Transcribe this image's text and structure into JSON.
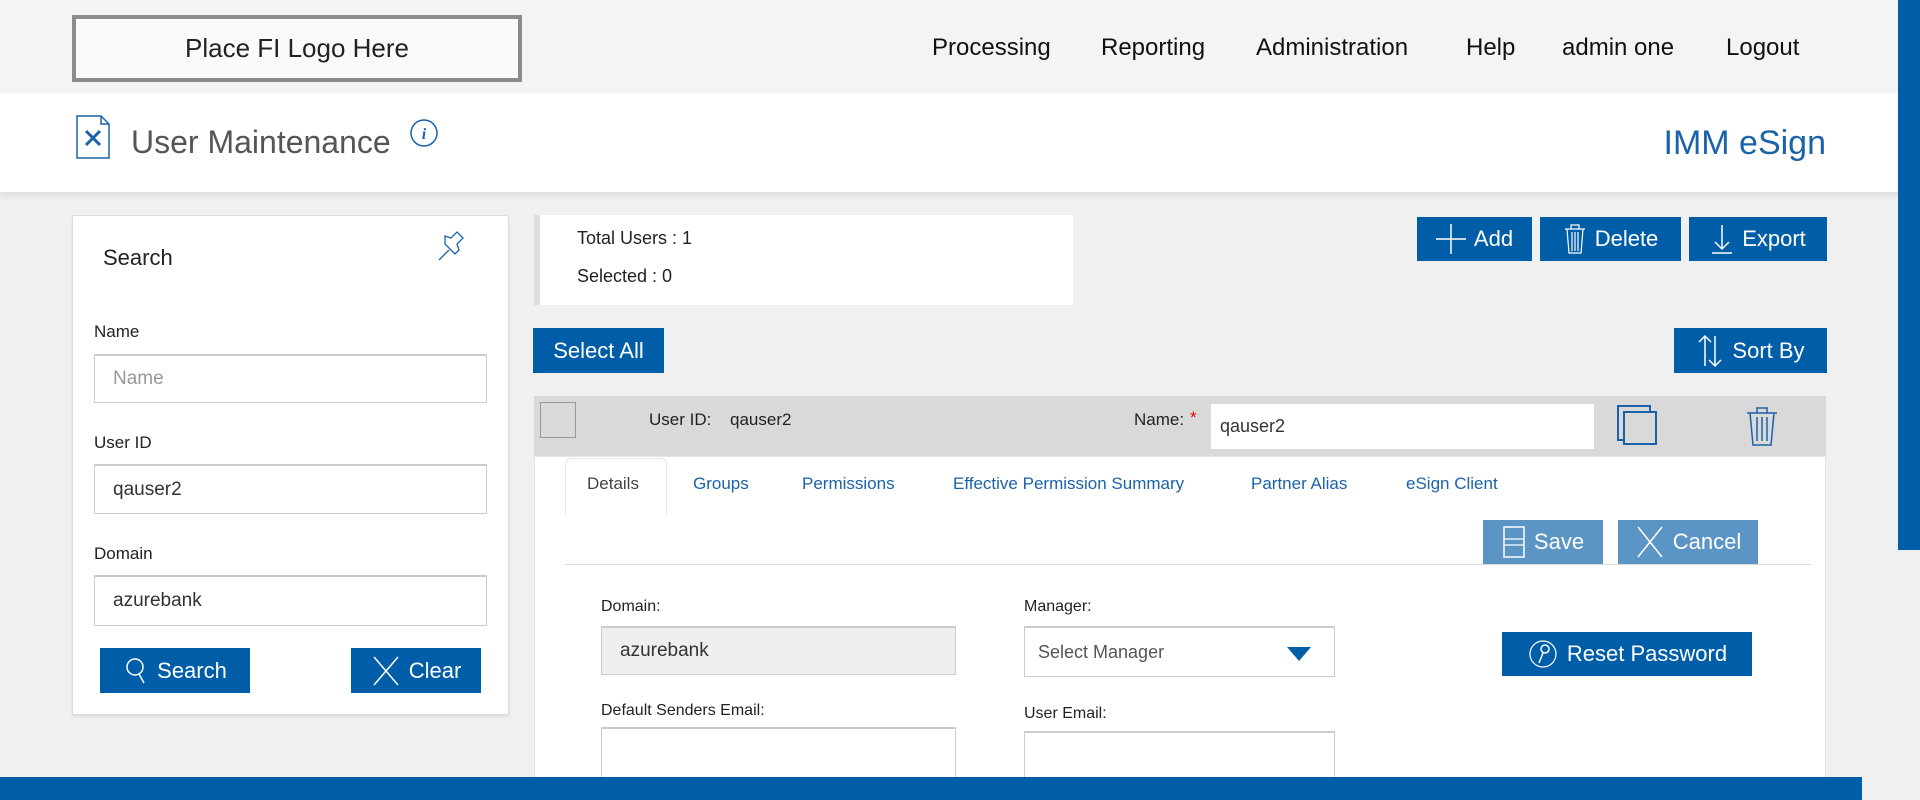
{
  "topbar": {
    "logo": "Place FI Logo Here",
    "nav": [
      "Processing",
      "Reporting",
      "Administration",
      "Help",
      "admin one",
      "Logout"
    ]
  },
  "header": {
    "title": "User Maintenance",
    "brand": "IMM eSign"
  },
  "search": {
    "title": "Search",
    "name_label": "Name",
    "name_placeholder": "Name",
    "name_value": "",
    "userid_label": "User ID",
    "userid_value": "qauser2",
    "domain_label": "Domain",
    "domain_value": "azurebank",
    "search_btn": "Search",
    "clear_btn": "Clear"
  },
  "stats": {
    "total": "Total Users : 1",
    "selected": "Selected : 0"
  },
  "toolbar": {
    "add": "Add",
    "delete": "Delete",
    "export": "Export",
    "select_all": "Select All",
    "sort_by": "Sort By"
  },
  "user": {
    "userid_label": "User ID:",
    "userid": "qauser2",
    "name_label": "Name:",
    "required": "*",
    "name": "qauser2"
  },
  "tabs": [
    "Details",
    "Groups",
    "Permissions",
    "Effective Permission Summary",
    "Partner Alias",
    "eSign Client"
  ],
  "details": {
    "save": "Save",
    "cancel": "Cancel",
    "domain_label": "Domain:",
    "domain": "azurebank",
    "manager_label": "Manager:",
    "manager_placeholder": "Select Manager",
    "reset": "Reset Password",
    "senders_label": "Default Senders Email:",
    "senders": "",
    "email_label": "User Email:",
    "email": ""
  },
  "colors": {
    "primary": "#005ea8",
    "disabled_button": "#5b95c6",
    "link": "#1b63a8"
  }
}
